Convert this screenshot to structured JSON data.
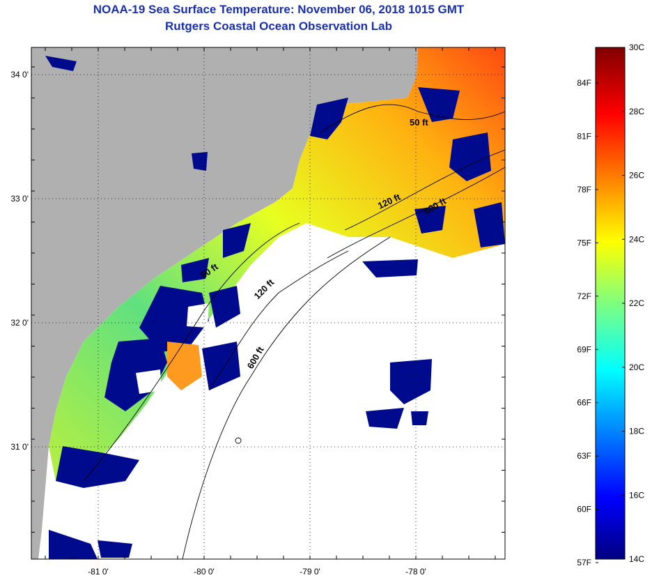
{
  "header": {
    "title": "NOAA-19 Sea Surface Temperature:  November 06, 2018 1015 GMT",
    "subtitle": "Rutgers Coastal Ocean Observation Lab"
  },
  "map": {
    "lat_ticks": [
      {
        "value": 34,
        "label": "34 0'"
      },
      {
        "value": 33,
        "label": "33 0'"
      },
      {
        "value": 32,
        "label": "32 0'"
      },
      {
        "value": 31,
        "label": "31 0'"
      }
    ],
    "lon_ticks": [
      {
        "value": -81,
        "label": "-81 0'"
      },
      {
        "value": -80,
        "label": "-80 0'"
      },
      {
        "value": -79,
        "label": "-79 0'"
      },
      {
        "value": -78,
        "label": "-78 0'"
      }
    ],
    "contour_labels": [
      {
        "label": "50 ft",
        "name": "depth-50ft-north"
      },
      {
        "label": "120 ft",
        "name": "depth-120ft-north"
      },
      {
        "label": "600 ft",
        "name": "depth-600ft-north"
      },
      {
        "label": "50 ft",
        "name": "depth-50ft-south"
      },
      {
        "label": "120 ft",
        "name": "depth-120ft-south"
      },
      {
        "label": "600 ft",
        "name": "depth-600ft-south"
      }
    ],
    "colors": {
      "land": "#b0b0b0",
      "cloud_mask": "#ffffff",
      "cold": "#000a8c",
      "warm": "#ff6a00"
    }
  },
  "colorbar": {
    "fahrenheit_labels": [
      "84F",
      "81F",
      "78F",
      "75F",
      "72F",
      "69F",
      "66F",
      "63F",
      "60F",
      "57F"
    ],
    "celsius_labels": [
      "30C",
      "28C",
      "26C",
      "24C",
      "22C",
      "20C",
      "18C",
      "16C",
      "14C"
    ],
    "min_c": 14,
    "max_c": 30
  }
}
